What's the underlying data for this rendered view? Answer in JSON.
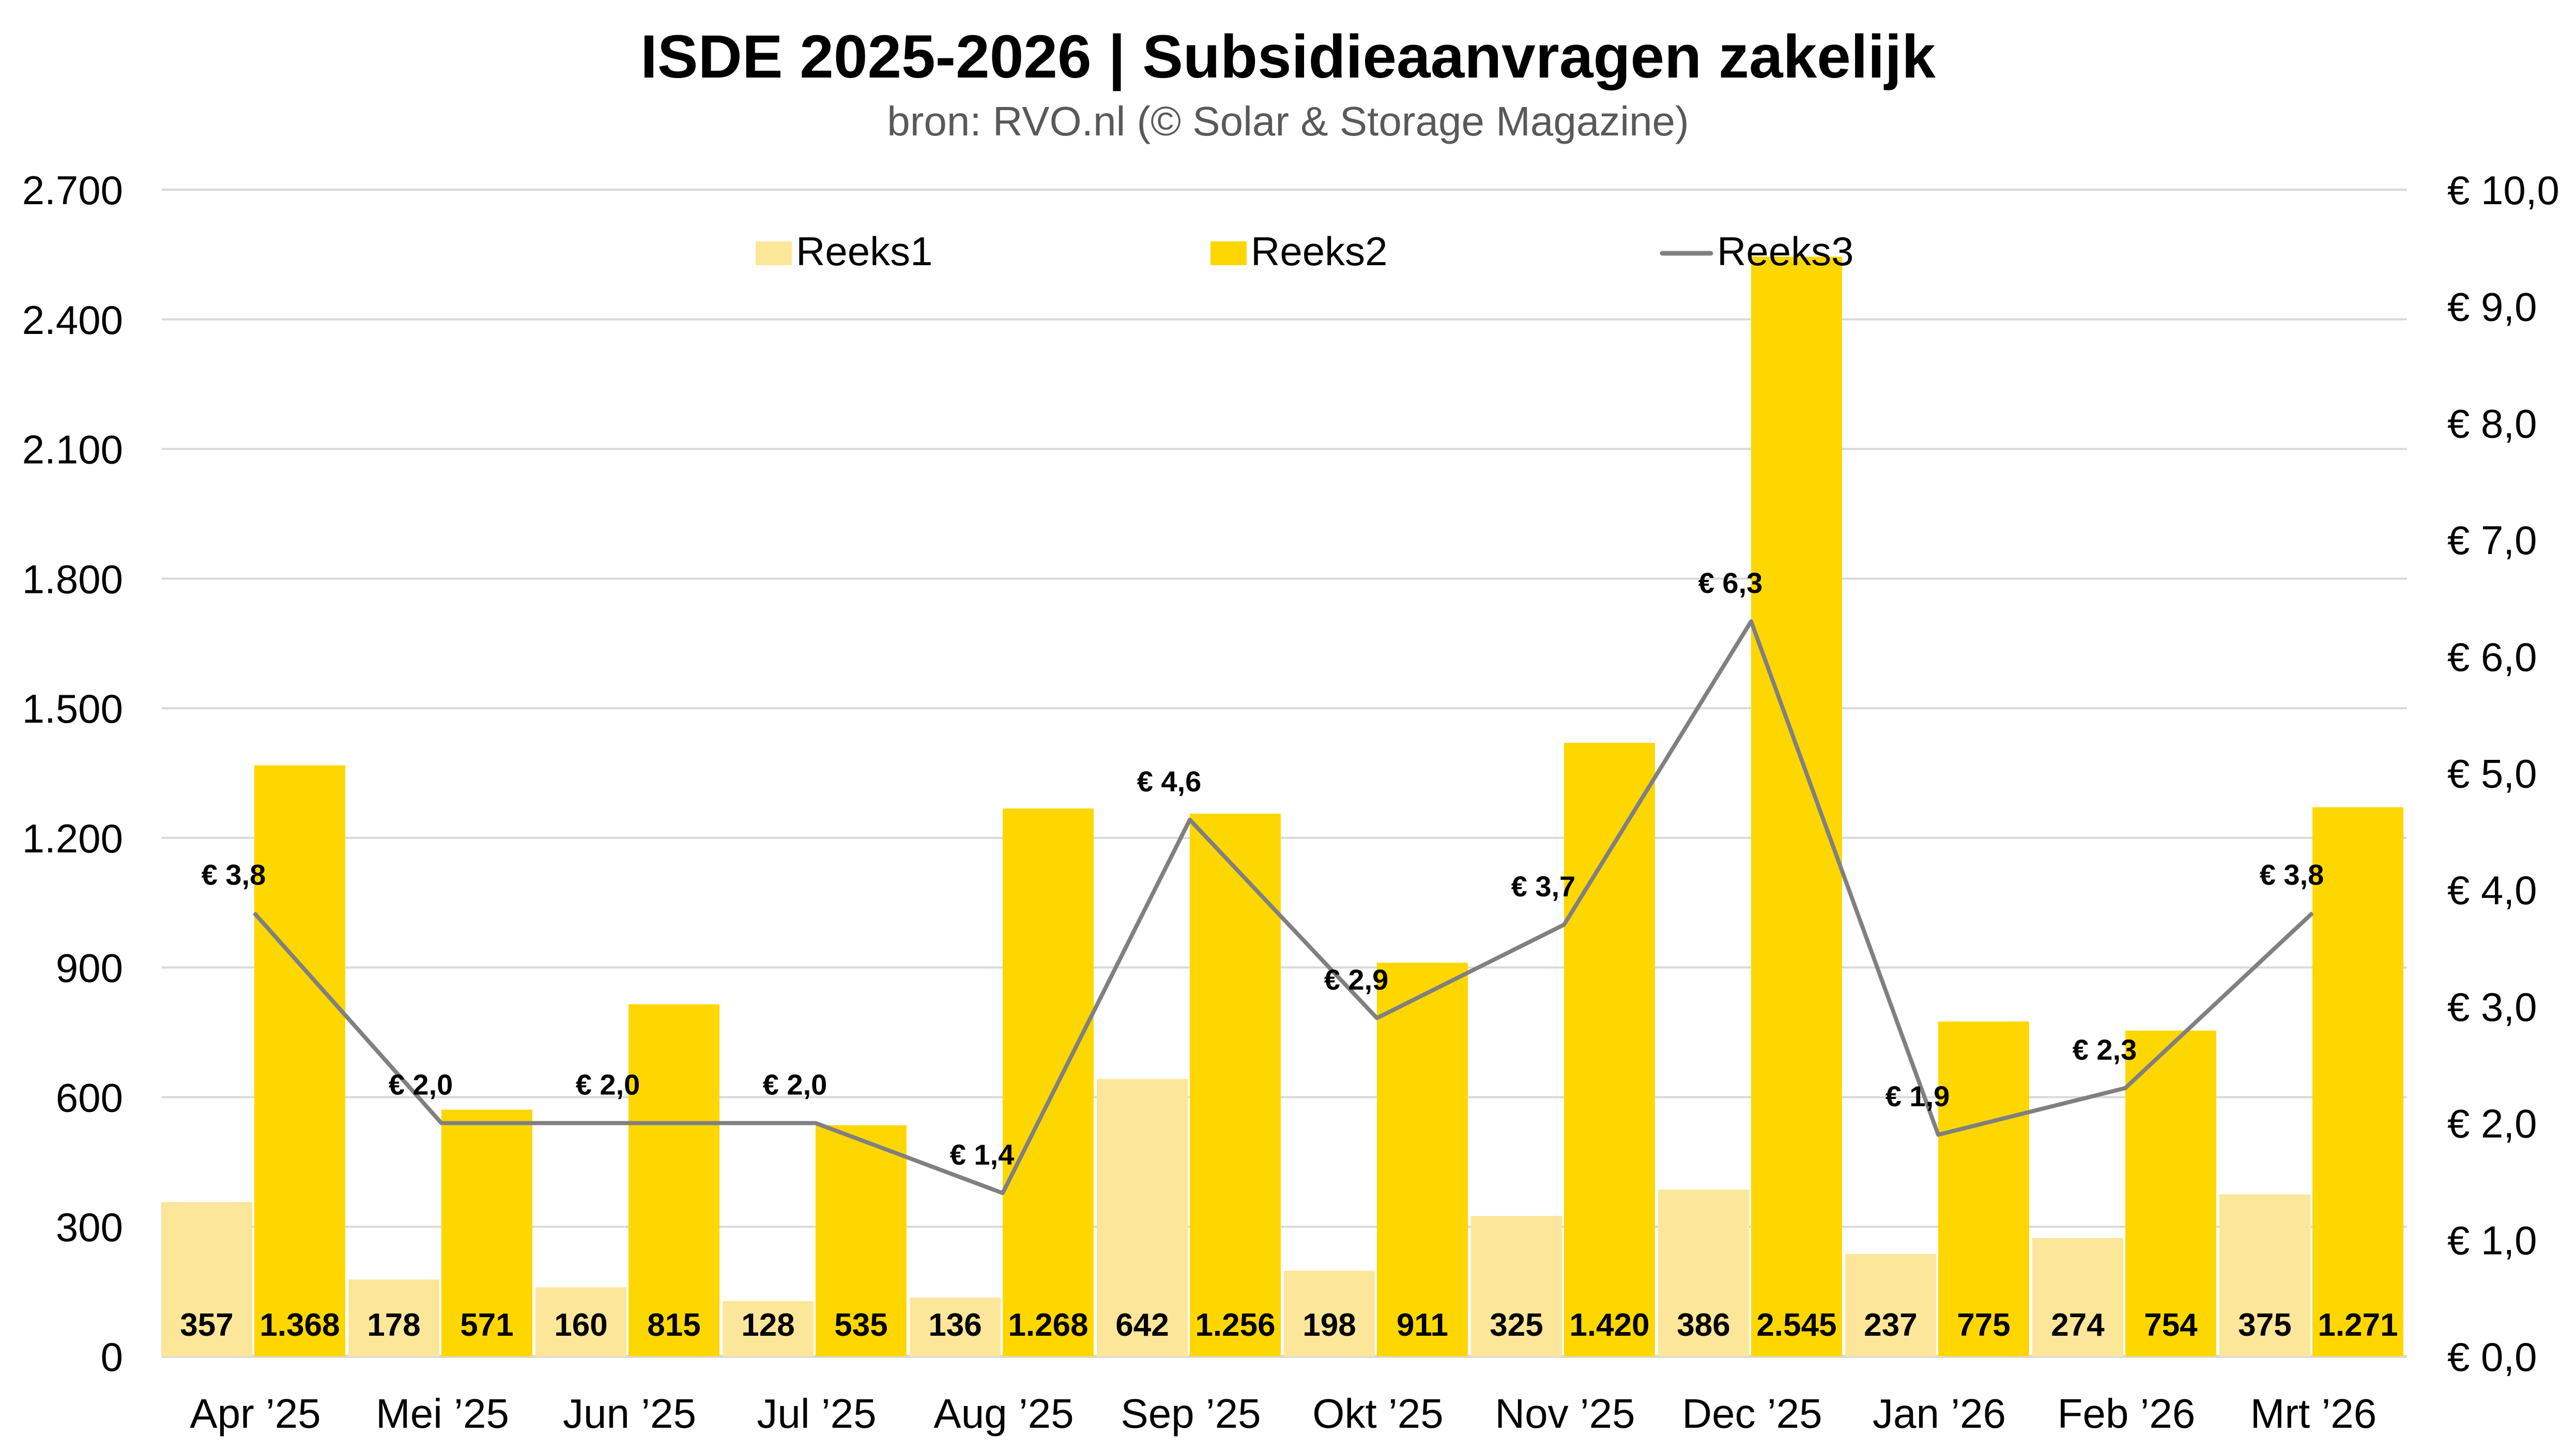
{
  "chart_data": {
    "type": "bar",
    "title": "ISDE 2025-2026 | Subsidieaanvragen zakelijk",
    "subtitle": "bron: RVO.nl (© Solar & Storage Magazine)",
    "xlabel": "",
    "ylabel": "",
    "y2label": "",
    "categories": [
      "Apr ’25",
      "Mei ’25",
      "Jun ’25",
      "Jul ’25",
      "Aug ’25",
      "Sep ’25",
      "Okt ’25",
      "Nov ’25",
      "Dec ’25",
      "Jan ’26",
      "Feb ’26",
      "Mrt ’26"
    ],
    "series": [
      {
        "name": "Reeks1",
        "type": "bar",
        "axis": "left",
        "color": "#FCE699",
        "values": [
          357,
          178,
          160,
          128,
          136,
          642,
          198,
          325,
          386,
          237,
          274,
          375
        ],
        "labels": [
          "357",
          "178",
          "160",
          "128",
          "136",
          "642",
          "198",
          "325",
          "386",
          "237",
          "274",
          "375"
        ]
      },
      {
        "name": "Reeks2",
        "type": "bar",
        "axis": "left",
        "color": "#FFD700",
        "values": [
          1368,
          571,
          815,
          535,
          1268,
          1256,
          911,
          1420,
          2545,
          775,
          754,
          1271
        ],
        "labels": [
          "1.368",
          "571",
          "815",
          "535",
          "1.268",
          "1.256",
          "911",
          "1.420",
          "2.545",
          "775",
          "754",
          "1.271"
        ]
      },
      {
        "name": "Reeks3",
        "type": "line",
        "axis": "right",
        "color": "#808080",
        "values": [
          3.8,
          2.0,
          2.0,
          2.0,
          1.4,
          4.6,
          2.9,
          3.7,
          6.3,
          1.9,
          2.3,
          3.8
        ],
        "labels": [
          "€ 3,8",
          "€ 2,0",
          "€ 2,0",
          "€ 2,0",
          "€ 1,4",
          "€ 4,6",
          "€ 2,9",
          "€ 3,7",
          "€ 6,3",
          "€ 1,9",
          "€ 2,3",
          "€ 3,8"
        ]
      }
    ],
    "y_axis_left": {
      "min": 0,
      "max": 2700,
      "ticks": [
        0,
        300,
        600,
        900,
        1200,
        1500,
        1800,
        2100,
        2400,
        2700
      ],
      "tick_labels": [
        "0",
        "300",
        "600",
        "900",
        "1.200",
        "1.500",
        "1.800",
        "2.100",
        "2.400",
        "2.700"
      ]
    },
    "y_axis_right": {
      "min": 0,
      "max": 10,
      "ticks": [
        0,
        1,
        2,
        3,
        4,
        5,
        6,
        7,
        8,
        9,
        10
      ],
      "tick_labels": [
        "€ 0,0",
        "€ 1,0",
        "€ 2,0",
        "€ 3,0",
        "€ 4,0",
        "€ 5,0",
        "€ 6,0",
        "€ 7,0",
        "€ 8,0",
        "€ 9,0",
        "€ 10,0"
      ]
    },
    "ylim": [
      0,
      2700
    ],
    "y2lim": [
      0,
      10
    ],
    "grid": true,
    "legend": {
      "position": "top",
      "entries": [
        "Reeks1",
        "Reeks2",
        "Reeks3"
      ]
    }
  },
  "colors": {
    "reeks1": "#FCE699",
    "reeks2": "#FFD700",
    "reeks3": "#808080",
    "grid": "#D9D9D9",
    "subtitle": "#595959"
  }
}
